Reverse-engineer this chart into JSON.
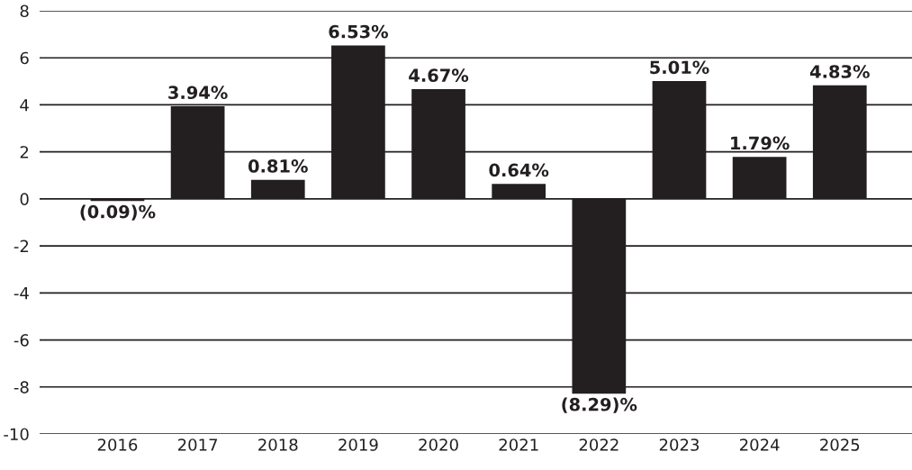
{
  "chart_data": {
    "type": "bar",
    "categories": [
      "2016",
      "2017",
      "2018",
      "2019",
      "2020",
      "2021",
      "2022",
      "2023",
      "2024",
      "2025"
    ],
    "values": [
      -0.09,
      3.94,
      0.81,
      6.53,
      4.67,
      0.64,
      -8.29,
      5.01,
      1.79,
      4.83
    ],
    "value_labels": [
      "(0.09)%",
      "3.94%",
      "0.81%",
      "6.53%",
      "4.67%",
      "0.64%",
      "(8.29)%",
      "5.01%",
      "1.79%",
      "4.83%"
    ],
    "color": "#231f20",
    "ylim": [
      -10,
      8
    ],
    "yticks": [
      -10,
      -8,
      -6,
      -4,
      -2,
      0,
      2,
      4,
      6,
      8
    ],
    "grid": "y",
    "legend": false
  }
}
